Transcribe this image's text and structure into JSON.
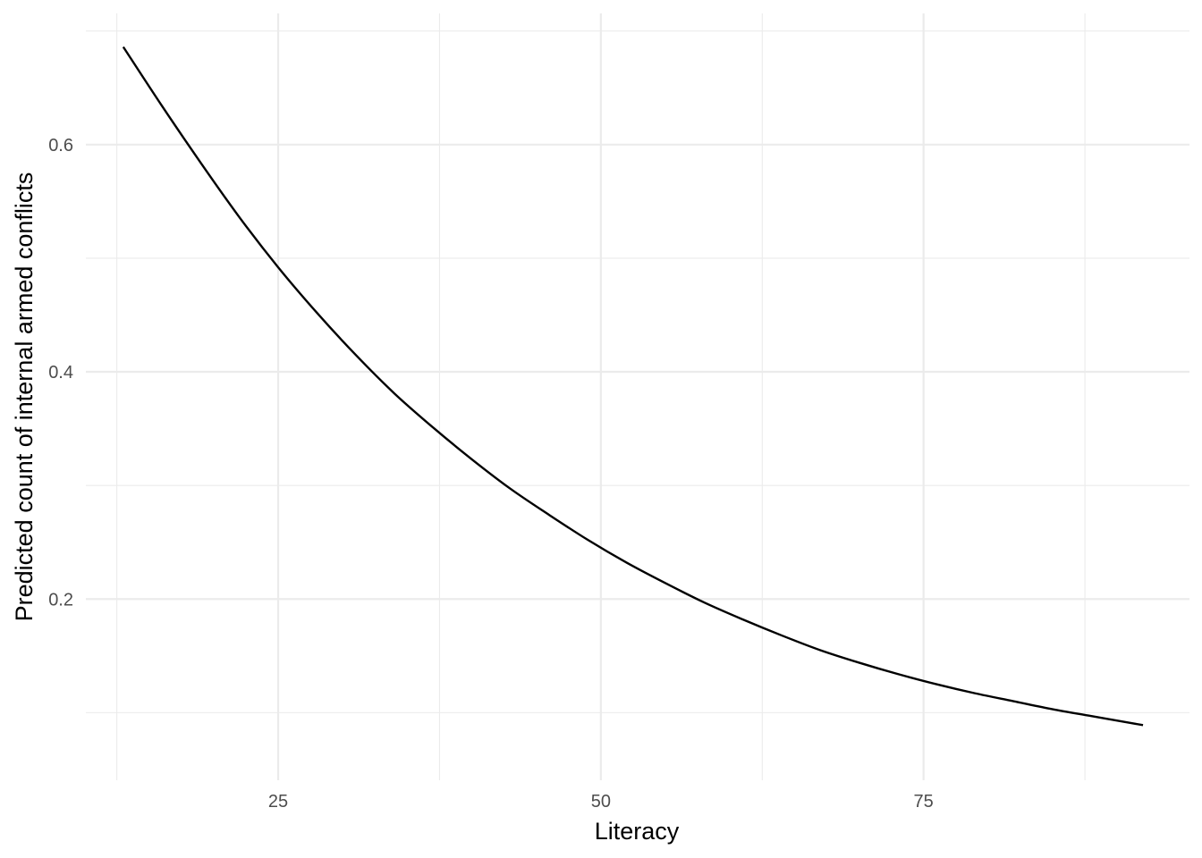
{
  "chart_data": {
    "type": "line",
    "xlabel": "Literacy",
    "ylabel": "Predicted count of internal armed conflicts",
    "xlim": [
      10.1,
      95.6
    ],
    "ylim": [
      0.0405,
      0.7155
    ],
    "x_ticks": [
      25,
      50,
      75
    ],
    "x_minor_ticks": [
      12.5,
      37.5,
      62.5,
      87.5
    ],
    "x_tick_labels": [
      "25",
      "50",
      "75"
    ],
    "y_ticks": [
      0.2,
      0.4,
      0.6
    ],
    "y_minor_ticks": [
      0.1,
      0.3,
      0.5,
      0.7
    ],
    "y_tick_labels": [
      "0.2",
      "0.4",
      "0.6"
    ],
    "grid": true,
    "legend": "none",
    "line_color": "#000000",
    "series": [
      {
        "x": [
          13,
          16,
          19,
          22,
          25,
          28,
          31,
          34,
          37,
          40,
          43,
          46,
          49,
          52,
          55,
          58,
          61,
          64,
          67,
          70,
          73,
          76,
          79,
          82,
          85,
          88,
          91,
          92
        ],
        "values": [
          0.686,
          0.634,
          0.584,
          0.536,
          0.492,
          0.452,
          0.415,
          0.381,
          0.351,
          0.323,
          0.297,
          0.274,
          0.252,
          0.232,
          0.214,
          0.197,
          0.182,
          0.168,
          0.155,
          0.144,
          0.134,
          0.125,
          0.117,
          0.11,
          0.103,
          0.097,
          0.091,
          0.089
        ]
      }
    ]
  }
}
